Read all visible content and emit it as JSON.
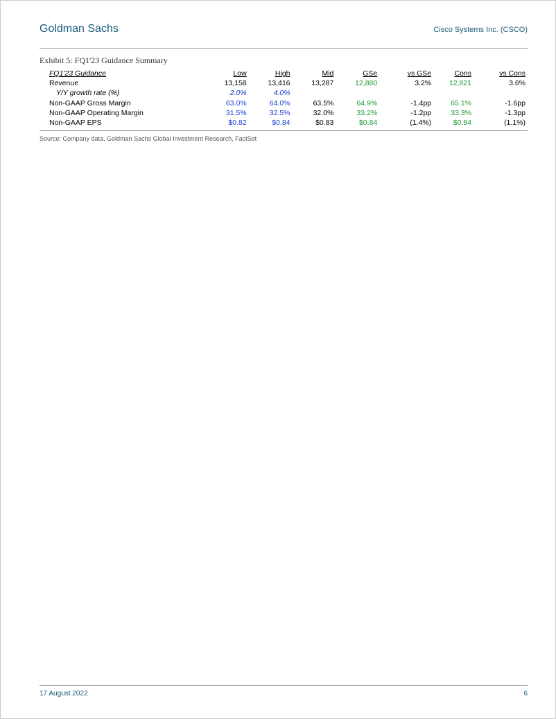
{
  "header": {
    "left": "Goldman Sachs",
    "right": "Cisco Systems Inc. (CSCO)"
  },
  "exhibit": {
    "title": "Exhibit 5: FQ1'23 Guidance Summary",
    "section_label": "FQ1'23 Guidance",
    "columns": {
      "low": "Low",
      "high": "High",
      "mid": "Mid",
      "gse": "GSe",
      "vs_gse": "vs GSe",
      "cons": "Cons",
      "vs_cons": "vs Cons"
    },
    "rows": [
      {
        "label": "Revenue",
        "indent": false,
        "italic": false,
        "low": {
          "v": "13,158",
          "c": "#000"
        },
        "high": {
          "v": "13,416",
          "c": "#000"
        },
        "mid": {
          "v": "13,287",
          "c": "#000"
        },
        "gse": {
          "v": "12,880",
          "c": "#1a9933"
        },
        "vsgse": {
          "v": "3.2%",
          "c": "#000"
        },
        "cons": {
          "v": "12,821",
          "c": "#1a9933"
        },
        "vscons": {
          "v": "3.6%",
          "c": "#000"
        }
      },
      {
        "label": "Y/Y growth rate (%)",
        "indent": true,
        "italic": true,
        "low": {
          "v": "2.0%",
          "c": "#1a3fd6"
        },
        "high": {
          "v": "4.0%",
          "c": "#1a3fd6"
        },
        "mid": {
          "v": "",
          "c": "#000"
        },
        "gse": {
          "v": "",
          "c": "#000"
        },
        "vsgse": {
          "v": "",
          "c": "#000"
        },
        "cons": {
          "v": "",
          "c": "#000"
        },
        "vscons": {
          "v": "",
          "c": "#000"
        }
      },
      {
        "label": "Non-GAAP Gross Margin",
        "indent": false,
        "italic": false,
        "low": {
          "v": "63.0%",
          "c": "#1a3fd6"
        },
        "high": {
          "v": "64.0%",
          "c": "#1a3fd6"
        },
        "mid": {
          "v": "63.5%",
          "c": "#000"
        },
        "gse": {
          "v": "64.9%",
          "c": "#1a9933"
        },
        "vsgse": {
          "v": "-1.4pp",
          "c": "#000"
        },
        "cons": {
          "v": "65.1%",
          "c": "#1a9933"
        },
        "vscons": {
          "v": "-1.6pp",
          "c": "#000"
        }
      },
      {
        "label": "Non-GAAP Operating Margin",
        "indent": false,
        "italic": false,
        "low": {
          "v": "31.5%",
          "c": "#1a3fd6"
        },
        "high": {
          "v": "32.5%",
          "c": "#1a3fd6"
        },
        "mid": {
          "v": "32.0%",
          "c": "#000"
        },
        "gse": {
          "v": "33.2%",
          "c": "#1a9933"
        },
        "vsgse": {
          "v": "-1.2pp",
          "c": "#000"
        },
        "cons": {
          "v": "33.3%",
          "c": "#1a9933"
        },
        "vscons": {
          "v": "-1.3pp",
          "c": "#000"
        }
      },
      {
        "label": "Non-GAAP EPS",
        "indent": false,
        "italic": false,
        "low": {
          "v": "$0.82",
          "c": "#1a3fd6"
        },
        "high": {
          "v": "$0.84",
          "c": "#1a3fd6"
        },
        "mid": {
          "v": "$0.83",
          "c": "#000"
        },
        "gse": {
          "v": "$0.84",
          "c": "#1a9933"
        },
        "vsgse": {
          "v": "(1.4%)",
          "c": "#000"
        },
        "cons": {
          "v": "$0.84",
          "c": "#1a9933"
        },
        "vscons": {
          "v": "(1.1%)",
          "c": "#000"
        }
      }
    ],
    "source": "Source: Company data, Goldman Sachs Global Investment Research, FactSet"
  },
  "footer": {
    "date": "17 August 2022",
    "page": "6"
  },
  "colors": {
    "brand": "#1a5a7a",
    "blue": "#1a3fd6",
    "green": "#1a9933",
    "rule": "#999999",
    "text": "#000000"
  }
}
